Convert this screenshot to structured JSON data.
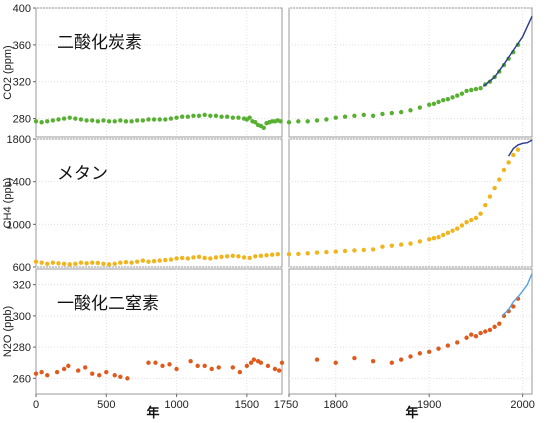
{
  "chart_data": [
    {
      "type": "scatter",
      "title": "二酸化炭素",
      "ylabel": "CO2 (ppm)",
      "ylim": [
        260,
        400
      ],
      "yticks": [
        280,
        320,
        360,
        400
      ],
      "early": {
        "xlim": [
          0,
          1750
        ],
        "x": [
          0,
          40,
          80,
          120,
          160,
          200,
          240,
          280,
          320,
          360,
          400,
          440,
          480,
          520,
          560,
          600,
          640,
          680,
          720,
          760,
          800,
          840,
          880,
          920,
          960,
          1000,
          1040,
          1080,
          1120,
          1160,
          1200,
          1240,
          1280,
          1320,
          1360,
          1400,
          1440,
          1480,
          1500,
          1520,
          1540,
          1560,
          1580,
          1600,
          1620,
          1640,
          1660,
          1680,
          1700,
          1720,
          1740
        ],
        "y": [
          277,
          276,
          277,
          278,
          279,
          280,
          281,
          280,
          279,
          278,
          278,
          277,
          278,
          277,
          277,
          278,
          277,
          277,
          278,
          278,
          279,
          279,
          279,
          279,
          280,
          281,
          282,
          282,
          283,
          283,
          284,
          283,
          283,
          282,
          282,
          281,
          281,
          280,
          279,
          281,
          277,
          276,
          273,
          272,
          270,
          275,
          276,
          277,
          277,
          278,
          277
        ],
        "color": "#58b032"
      },
      "late": {
        "xlim": [
          1750,
          2010
        ],
        "xticks": [
          1750,
          1800,
          1900,
          2000
        ],
        "x": [
          1750,
          1760,
          1770,
          1780,
          1790,
          1800,
          1810,
          1820,
          1830,
          1840,
          1850,
          1860,
          1870,
          1880,
          1890,
          1900,
          1905,
          1910,
          1915,
          1920,
          1925,
          1930,
          1935,
          1940,
          1945,
          1950,
          1955,
          1960,
          1965,
          1970,
          1975,
          1980,
          1985,
          1990,
          1995
        ],
        "y": [
          276,
          277,
          277,
          278,
          279,
          281,
          282,
          283,
          284,
          283,
          285,
          286,
          287,
          289,
          292,
          295,
          296,
          298,
          300,
          301,
          303,
          305,
          307,
          310,
          311,
          312,
          313,
          317,
          320,
          325,
          331,
          338,
          345,
          352,
          360
        ],
        "color": "#58b032",
        "instrumental": {
          "x": [
            1958,
            1970,
            1980,
            1990,
            2000,
            2010
          ],
          "y": [
            315,
            325,
            339,
            354,
            369,
            391
          ],
          "color": "#2a3a8c"
        }
      }
    },
    {
      "type": "scatter",
      "title": "メタン",
      "ylabel": "CH4 (ppb)",
      "ylim": [
        600,
        1800
      ],
      "yticks": [
        600,
        1000,
        1400,
        1800
      ],
      "early": {
        "xlim": [
          0,
          1750
        ],
        "x": [
          0,
          40,
          80,
          120,
          160,
          200,
          240,
          280,
          320,
          360,
          400,
          440,
          480,
          520,
          560,
          600,
          640,
          680,
          720,
          760,
          800,
          840,
          880,
          920,
          960,
          1000,
          1040,
          1080,
          1120,
          1160,
          1200,
          1240,
          1280,
          1320,
          1360,
          1400,
          1440,
          1480,
          1520,
          1560,
          1600,
          1640,
          1680,
          1720
        ],
        "y": [
          650,
          640,
          630,
          640,
          635,
          630,
          625,
          630,
          640,
          635,
          640,
          638,
          630,
          625,
          630,
          640,
          645,
          640,
          650,
          660,
          650,
          655,
          660,
          665,
          670,
          680,
          685,
          680,
          690,
          695,
          685,
          680,
          690,
          695,
          700,
          705,
          700,
          690,
          685,
          700,
          705,
          710,
          715,
          720
        ],
        "color": "#f0b41c"
      },
      "late": {
        "xlim": [
          1750,
          2010
        ],
        "xticks": [
          1750,
          1800,
          1900,
          2000
        ],
        "x": [
          1750,
          1760,
          1770,
          1780,
          1790,
          1800,
          1810,
          1820,
          1830,
          1840,
          1850,
          1860,
          1870,
          1880,
          1890,
          1900,
          1905,
          1910,
          1915,
          1920,
          1925,
          1930,
          1935,
          1940,
          1945,
          1950,
          1955,
          1960,
          1965,
          1970,
          1975,
          1980,
          1985,
          1990,
          1995
        ],
        "y": [
          720,
          722,
          728,
          735,
          740,
          745,
          750,
          755,
          760,
          765,
          790,
          800,
          810,
          820,
          840,
          860,
          870,
          880,
          900,
          920,
          940,
          960,
          990,
          1020,
          1040,
          1060,
          1100,
          1180,
          1260,
          1340,
          1420,
          1510,
          1580,
          1650,
          1700
        ],
        "color": "#f0b41c",
        "instrumental": {
          "x": [
            1985,
            1990,
            1995,
            2000,
            2005,
            2010
          ],
          "y": [
            1640,
            1710,
            1745,
            1760,
            1765,
            1790
          ],
          "color": "#2a3a8c"
        }
      }
    },
    {
      "type": "scatter",
      "title": "一酸化二窒素",
      "ylabel": "N2O (ppb)",
      "ylim": [
        250,
        330
      ],
      "yticks": [
        260,
        280,
        300,
        320
      ],
      "early": {
        "xlim": [
          0,
          1750
        ],
        "x": [
          0,
          40,
          80,
          150,
          200,
          230,
          300,
          350,
          400,
          450,
          500,
          560,
          600,
          650,
          800,
          850,
          900,
          950,
          1000,
          1100,
          1150,
          1200,
          1250,
          1300,
          1400,
          1450,
          1500,
          1530,
          1550,
          1580,
          1600,
          1650,
          1700,
          1730,
          1750
        ],
        "y": [
          263,
          264,
          262,
          264,
          266,
          268,
          265,
          267,
          263,
          262,
          264,
          262,
          261,
          260,
          270,
          270,
          268,
          269,
          266,
          271,
          268,
          268,
          266,
          267,
          267,
          264,
          268,
          270,
          272,
          271,
          270,
          268,
          266,
          265,
          270
        ],
        "color": "#e05a1e"
      },
      "late": {
        "xlim": [
          1750,
          2010
        ],
        "xticks": [
          1750,
          1800,
          1900,
          2000
        ],
        "x": [
          1780,
          1800,
          1820,
          1840,
          1860,
          1870,
          1880,
          1890,
          1900,
          1910,
          1920,
          1930,
          1940,
          1945,
          1950,
          1955,
          1960,
          1965,
          1970,
          1975,
          1980,
          1985,
          1990,
          1995
        ],
        "y": [
          272,
          270,
          273,
          271,
          270,
          272,
          274,
          276,
          277,
          279,
          281,
          283,
          286,
          288,
          287,
          289,
          290,
          291,
          293,
          295,
          300,
          303,
          306,
          311
        ],
        "color": "#e05a1e",
        "instrumental": {
          "x": [
            1978,
            1985,
            1990,
            1995,
            2000,
            2005,
            2010
          ],
          "y": [
            300,
            304,
            309,
            312,
            316,
            320,
            327
          ],
          "color": "#5aa0e0"
        }
      }
    }
  ],
  "x_tick_labels": {
    "early": [
      "0",
      "500",
      "1000",
      "1500"
    ],
    "late": [
      "1750",
      "1800",
      "1900",
      "2000"
    ]
  },
  "xlabel_left": "年",
  "xlabel_right": "年"
}
